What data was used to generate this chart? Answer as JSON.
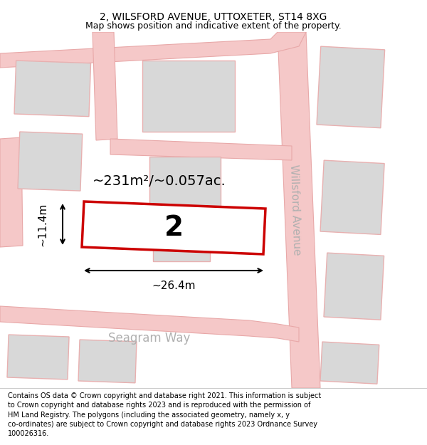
{
  "title_line1": "2, WILSFORD AVENUE, UTTOXETER, ST14 8XG",
  "title_line2": "Map shows position and indicative extent of the property.",
  "footer_text": "Contains OS data © Crown copyright and database right 2021. This information is subject\nto Crown copyright and database rights 2023 and is reproduced with the permission of\nHM Land Registry. The polygons (including the associated geometry, namely x, y\nco-ordinates) are subject to Crown copyright and database rights 2023 Ordnance Survey\n100026316.",
  "area_label": "~231m²/~0.057ac.",
  "number_label": "2",
  "width_label": "~26.4m",
  "height_label": "~11.4m",
  "street_label_1": "Willsford Avenue",
  "street_label_2": "Seagram Way",
  "map_bg": "#eeeeee",
  "plot_fill": "#ffffff",
  "plot_edge": "#cc0000",
  "building_fill": "#d8d8d8",
  "building_edge": "#e8b0b0",
  "road_fill": "#f5c8c8",
  "road_edge": "#e8a8a8",
  "title_fontsize": 10,
  "subtitle_fontsize": 9,
  "footer_fontsize": 7
}
